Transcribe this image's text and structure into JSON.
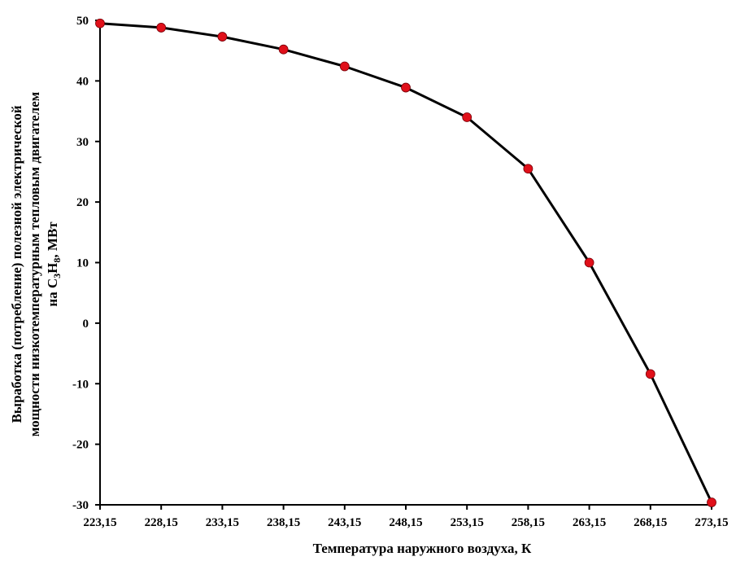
{
  "chart_data": {
    "type": "line",
    "xlabel": "Температура наружного воздуха, К",
    "ylabel": {
      "line1": "Выработка (потребление) полезной электрической",
      "line2": "мощности низкотемпературным тепловым двигателем",
      "line3_prefix": "на C",
      "line3_sub1": "3",
      "line3_mid": "H",
      "line3_sub2": "8",
      "line3_suffix": ", МВт"
    },
    "x_ticks": [
      "223,15",
      "228,15",
      "233,15",
      "238,15",
      "243,15",
      "248,15",
      "253,15",
      "258,15",
      "263,15",
      "268,15",
      "273,15"
    ],
    "y_ticks": [
      "50",
      "40",
      "30",
      "20",
      "10",
      "0",
      "-10",
      "-20",
      "-30"
    ],
    "ylim": [
      -30,
      50
    ],
    "xlim": [
      223.15,
      273.15
    ],
    "grid": false,
    "line_color": "#000000",
    "marker_color": "#e0101a",
    "series": [
      {
        "x": [
          223.15,
          228.15,
          233.15,
          238.15,
          243.15,
          248.15,
          253.15,
          258.15,
          263.15,
          268.15,
          273.15
        ],
        "y": [
          49.5,
          48.8,
          47.3,
          45.2,
          42.4,
          38.9,
          34.0,
          25.5,
          10.0,
          -8.4,
          -29.6
        ]
      }
    ]
  }
}
